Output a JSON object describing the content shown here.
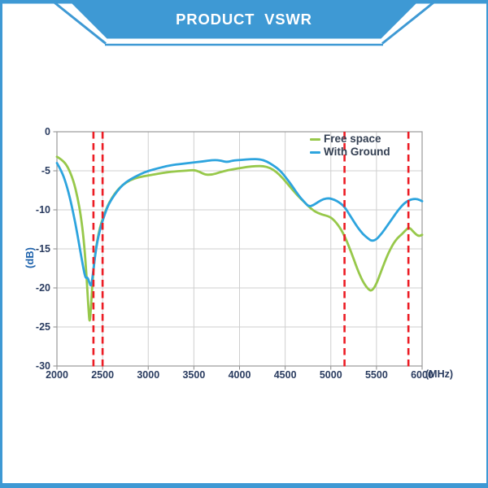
{
  "header": {
    "title": "PRODUCT  VSWR",
    "banner_color": "#3E99D4",
    "title_color": "#ffffff"
  },
  "chart_data": {
    "type": "line",
    "title": "",
    "xlabel": "(MHz)",
    "ylabel": "(dB)",
    "xlim": [
      2000,
      6000
    ],
    "ylim": [
      -30,
      0
    ],
    "x_ticks": [
      2000,
      2500,
      3000,
      3500,
      4000,
      4500,
      5000,
      5500,
      6000
    ],
    "y_ticks": [
      0,
      -5,
      -10,
      -15,
      -20,
      -25,
      -30
    ],
    "grid": true,
    "legend_position": "top-right",
    "band_markers_mhz": [
      2400,
      2500,
      5150,
      5850
    ],
    "colors": {
      "marker": "#EC1C24",
      "grid": "#CFCFCF",
      "plot_border": "#9A9A9A",
      "tick": "#8A8A8A",
      "tick_text": "#2A3C60",
      "ylabel_text": "#1F63AC",
      "legend_text": "#333F52"
    },
    "series": [
      {
        "name": "Free space",
        "color": "#97C84A",
        "points": [
          [
            2000,
            -3.2
          ],
          [
            2060,
            -3.6
          ],
          [
            2120,
            -4.5
          ],
          [
            2180,
            -6.2
          ],
          [
            2230,
            -8.6
          ],
          [
            2270,
            -11.4
          ],
          [
            2300,
            -14.6
          ],
          [
            2325,
            -18.6
          ],
          [
            2345,
            -22.6
          ],
          [
            2358,
            -24.7
          ],
          [
            2372,
            -22.6
          ],
          [
            2390,
            -19.2
          ],
          [
            2410,
            -16.4
          ],
          [
            2440,
            -14.0
          ],
          [
            2470,
            -12.3
          ],
          [
            2500,
            -11.2
          ],
          [
            2550,
            -9.6
          ],
          [
            2600,
            -8.5
          ],
          [
            2660,
            -7.5
          ],
          [
            2720,
            -6.8
          ],
          [
            2800,
            -6.2
          ],
          [
            2900,
            -5.8
          ],
          [
            3000,
            -5.6
          ],
          [
            3100,
            -5.4
          ],
          [
            3250,
            -5.1
          ],
          [
            3400,
            -5.0
          ],
          [
            3500,
            -4.9
          ],
          [
            3560,
            -5.1
          ],
          [
            3620,
            -5.5
          ],
          [
            3700,
            -5.5
          ],
          [
            3780,
            -5.2
          ],
          [
            3880,
            -4.9
          ],
          [
            3980,
            -4.7
          ],
          [
            4080,
            -4.5
          ],
          [
            4180,
            -4.4
          ],
          [
            4260,
            -4.4
          ],
          [
            4330,
            -4.6
          ],
          [
            4400,
            -5.1
          ],
          [
            4470,
            -5.9
          ],
          [
            4550,
            -7.0
          ],
          [
            4630,
            -8.1
          ],
          [
            4700,
            -8.9
          ],
          [
            4760,
            -9.6
          ],
          [
            4820,
            -10.2
          ],
          [
            4900,
            -10.6
          ],
          [
            5000,
            -10.9
          ],
          [
            5080,
            -11.9
          ],
          [
            5150,
            -13.3
          ],
          [
            5220,
            -15.3
          ],
          [
            5290,
            -17.6
          ],
          [
            5350,
            -19.2
          ],
          [
            5410,
            -20.2
          ],
          [
            5450,
            -20.4
          ],
          [
            5500,
            -19.5
          ],
          [
            5560,
            -17.6
          ],
          [
            5620,
            -15.8
          ],
          [
            5680,
            -14.4
          ],
          [
            5730,
            -13.6
          ],
          [
            5780,
            -13.1
          ],
          [
            5820,
            -12.6
          ],
          [
            5860,
            -12.2
          ],
          [
            5910,
            -12.9
          ],
          [
            5960,
            -13.4
          ],
          [
            6000,
            -13.2
          ]
        ]
      },
      {
        "name": "With Ground",
        "color": "#2DA4DE",
        "points": [
          [
            2000,
            -4.0
          ],
          [
            2050,
            -5.0
          ],
          [
            2100,
            -6.6
          ],
          [
            2150,
            -8.8
          ],
          [
            2200,
            -11.6
          ],
          [
            2240,
            -14.2
          ],
          [
            2270,
            -16.2
          ],
          [
            2295,
            -17.8
          ],
          [
            2315,
            -18.8
          ],
          [
            2335,
            -18.6
          ],
          [
            2355,
            -19.3
          ],
          [
            2375,
            -19.9
          ],
          [
            2395,
            -18.2
          ],
          [
            2415,
            -16.1
          ],
          [
            2440,
            -14.2
          ],
          [
            2470,
            -12.6
          ],
          [
            2500,
            -11.4
          ],
          [
            2550,
            -9.7
          ],
          [
            2600,
            -8.6
          ],
          [
            2660,
            -7.6
          ],
          [
            2720,
            -6.8
          ],
          [
            2800,
            -6.1
          ],
          [
            2900,
            -5.5
          ],
          [
            3000,
            -5.0
          ],
          [
            3100,
            -4.7
          ],
          [
            3200,
            -4.4
          ],
          [
            3300,
            -4.2
          ],
          [
            3450,
            -4.0
          ],
          [
            3600,
            -3.8
          ],
          [
            3720,
            -3.6
          ],
          [
            3800,
            -3.7
          ],
          [
            3860,
            -3.9
          ],
          [
            3920,
            -3.7
          ],
          [
            4020,
            -3.6
          ],
          [
            4120,
            -3.5
          ],
          [
            4220,
            -3.5
          ],
          [
            4300,
            -3.8
          ],
          [
            4370,
            -4.3
          ],
          [
            4440,
            -4.9
          ],
          [
            4510,
            -5.9
          ],
          [
            4580,
            -7.0
          ],
          [
            4650,
            -8.2
          ],
          [
            4710,
            -9.0
          ],
          [
            4760,
            -9.6
          ],
          [
            4810,
            -9.4
          ],
          [
            4860,
            -9.0
          ],
          [
            4920,
            -8.6
          ],
          [
            4980,
            -8.5
          ],
          [
            5040,
            -8.7
          ],
          [
            5100,
            -9.1
          ],
          [
            5150,
            -9.6
          ],
          [
            5220,
            -10.9
          ],
          [
            5290,
            -12.2
          ],
          [
            5350,
            -13.1
          ],
          [
            5410,
            -13.7
          ],
          [
            5450,
            -14.0
          ],
          [
            5500,
            -13.8
          ],
          [
            5560,
            -13.0
          ],
          [
            5620,
            -12.0
          ],
          [
            5680,
            -11.0
          ],
          [
            5740,
            -10.0
          ],
          [
            5800,
            -9.2
          ],
          [
            5850,
            -8.8
          ],
          [
            5900,
            -8.6
          ],
          [
            5950,
            -8.6
          ],
          [
            6000,
            -8.9
          ]
        ]
      }
    ]
  }
}
